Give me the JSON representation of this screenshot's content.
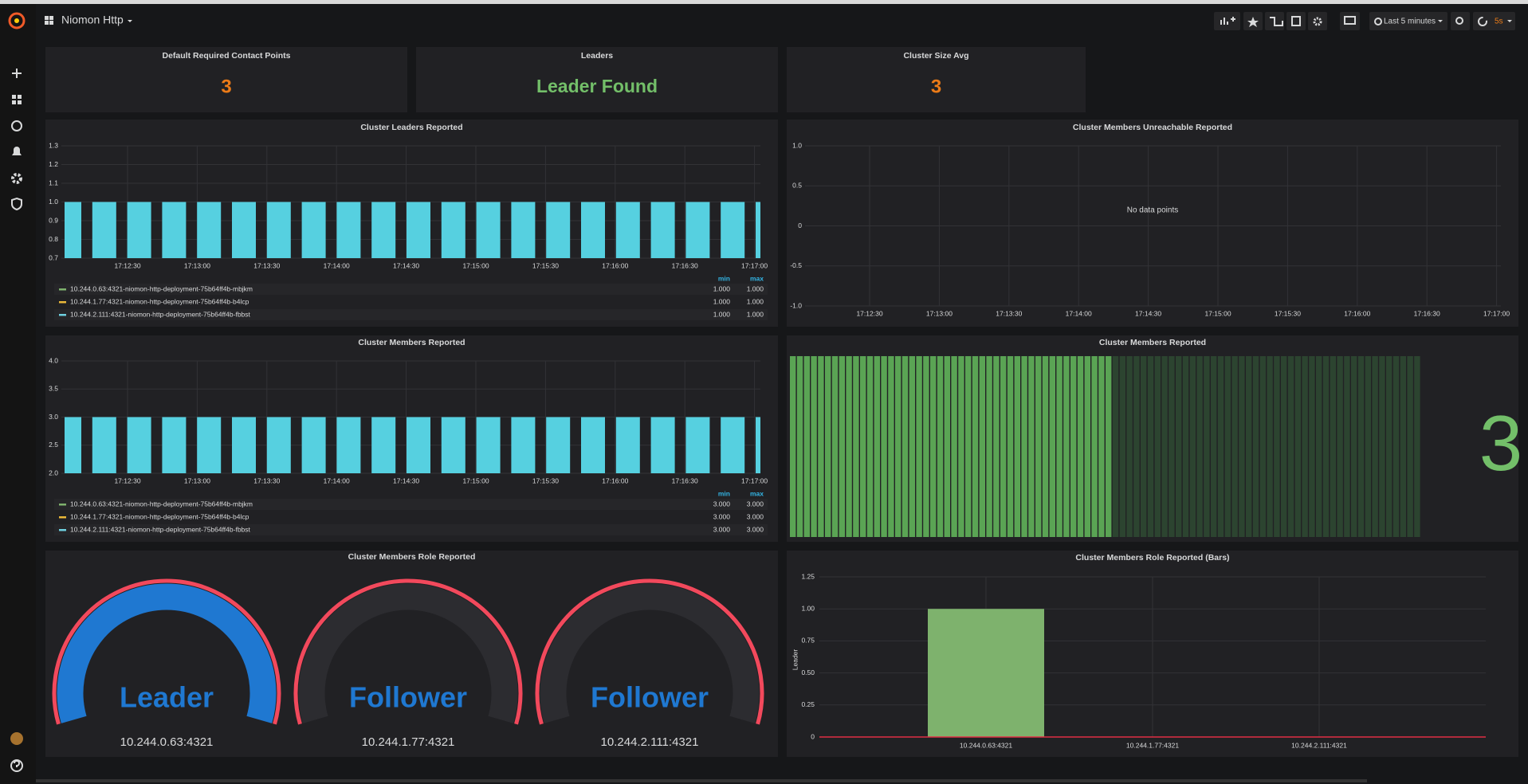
{
  "header": {
    "title": "Niomon Http",
    "time_range": "Last 5 minutes",
    "refresh": "5s"
  },
  "stats": [
    {
      "title": "Default Required Contact Points",
      "value": 3,
      "color": "#eb7b18"
    },
    {
      "title": "Leaders",
      "value": "Leader Found",
      "color": "#73bf69"
    },
    {
      "title": "Cluster Size Avg",
      "value": 3,
      "color": "#eb7b18"
    }
  ],
  "times": [
    "17:12:30",
    "17:13:00",
    "17:13:30",
    "17:14:00",
    "17:14:30",
    "17:15:00",
    "17:15:30",
    "17:16:00",
    "17:16:30",
    "17:17:00"
  ],
  "leaders_graph": {
    "title": "Cluster Leaders Reported",
    "color": "#56d0e0",
    "ylim": [
      0.7,
      1.3
    ],
    "yticks": [
      0.7,
      0.8,
      0.9,
      {
        "value": 1,
        "label": "1.0"
      },
      1.1,
      1.2,
      1.3
    ],
    "values": [
      1,
      1,
      1,
      1,
      1,
      1,
      1,
      1,
      1,
      1,
      1,
      1,
      1,
      1,
      1,
      1,
      1,
      1,
      1,
      1,
      1
    ],
    "legend": {
      "headers": [
        "min",
        "max"
      ],
      "rows": [
        {
          "name": "10.244.0.63:4321-niomon-http-deployment-75b64ff4b-mbjkm",
          "color": "#7eb26d",
          "min": "1.000",
          "max": "1.000"
        },
        {
          "name": "10.244.1.77:4321-niomon-http-deployment-75b64ff4b-b4lcp",
          "color": "#eab839",
          "min": "1.000",
          "max": "1.000"
        },
        {
          "name": "10.244.2.111:4321-niomon-http-deployment-75b64ff4b-fbbst",
          "color": "#6ed0e0",
          "min": "1.000",
          "max": "1.000"
        }
      ]
    }
  },
  "unreachable_graph": {
    "title": "Cluster Members Unreachable Reported",
    "message": "No data points",
    "ylim": [
      -1,
      1
    ],
    "yticks": [
      {
        "value": -1,
        "label": "-1.0"
      },
      -0.5,
      0,
      0.5,
      {
        "value": 1,
        "label": "1.0"
      }
    ]
  },
  "members_graph": {
    "title": "Cluster Members Reported",
    "color": "#56d0e0",
    "ylim": [
      2,
      4
    ],
    "yticks": [
      {
        "value": 2,
        "label": "2.0"
      },
      2.5,
      {
        "value": 3,
        "label": "3.0"
      },
      3.5,
      {
        "value": 4,
        "label": "4.0"
      }
    ],
    "values": [
      3,
      3,
      3,
      3,
      3,
      3,
      3,
      3,
      3,
      3,
      3,
      3,
      3,
      3,
      3,
      3,
      3,
      3,
      3,
      3,
      3
    ],
    "legend": {
      "headers": [
        "min",
        "max"
      ],
      "rows": [
        {
          "name": "10.244.0.63:4321-niomon-http-deployment-75b64ff4b-mbjkm",
          "color": "#7eb26d",
          "min": "3.000",
          "max": "3.000"
        },
        {
          "name": "10.244.1.77:4321-niomon-http-deployment-75b64ff4b-b4lcp",
          "color": "#eab839",
          "min": "3.000",
          "max": "3.000"
        },
        {
          "name": "10.244.2.111:4321-niomon-http-deployment-75b64ff4b-fbbst",
          "color": "#6ed0e0",
          "min": "3.000",
          "max": "3.000"
        }
      ]
    }
  },
  "members_stat": {
    "title": "Cluster Members Reported",
    "value": 3,
    "color": "#73bf69"
  },
  "gauges": {
    "title": "Cluster Members Role Reported",
    "range": [
      0,
      1
    ],
    "color": "#1f78d1",
    "threshold_color": "#f2495c",
    "items": [
      {
        "label": "Leader",
        "instance": "10.244.0.63:4321",
        "value": 1
      },
      {
        "label": "Follower",
        "instance": "10.244.1.77:4321",
        "value": 0
      },
      {
        "label": "Follower",
        "instance": "10.244.2.111:4321",
        "value": 0
      }
    ]
  },
  "role_bars": {
    "title": "Cluster Members Role Reported (Bars)",
    "ylabel": "Leader",
    "color": "#7eb26d",
    "categories": [
      "10.244.0.63:4321",
      "10.244.1.77:4321",
      "10.244.2.111:4321"
    ],
    "values": [
      1,
      0,
      0
    ],
    "ylim": [
      0,
      1.25
    ],
    "yticks": [
      0,
      0.25,
      {
        "value": 0.5,
        "label": "0.50"
      },
      0.75,
      {
        "value": 1,
        "label": "1.00"
      },
      1.25
    ]
  }
}
